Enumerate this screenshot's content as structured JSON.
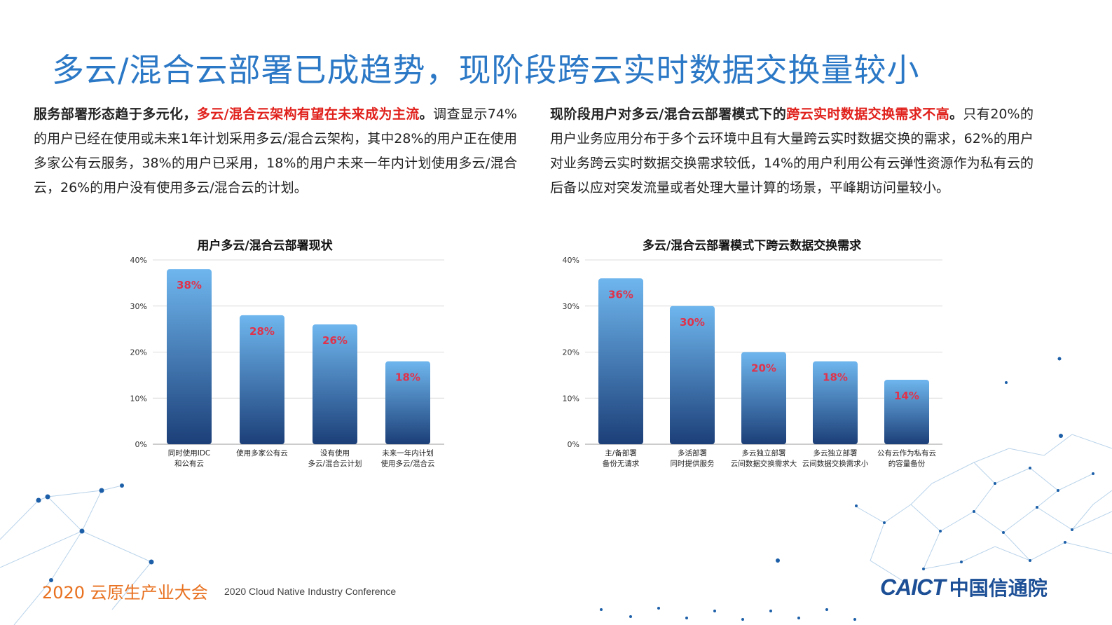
{
  "title": "多云/混合云部署已成趋势，现阶段跨云实时数据交换量较小",
  "left_text": {
    "bold": "服务部署形态趋于多元化，",
    "highlight": "多云/混合云架构有望在未来成为主流",
    "bold_end": "。",
    "body": "调查显示74%的用户已经在使用或未来1年计划采用多云/混合云架构，其中28%的用户正在使用多家公有云服务，38%的用户已采用，18%的用户未来一年内计划使用多云/混合云，26%的用户没有使用多云/混合云的计划。"
  },
  "right_text": {
    "bold": "现阶段用户对多云/混合云部署模式下的",
    "highlight": "跨云实时数据交换需求不高",
    "bold_end": "。",
    "body": "只有20%的用户业务应用分布于多个云环境中且有大量跨云实时数据交换的需求，62%的用户对业务跨云实时数据交换需求较低，14%的用户利用公有云弹性资源作为私有云的后备以应对突发流量或者处理大量计算的场景，平峰期访问量较小。"
  },
  "chart_data": [
    {
      "type": "bar",
      "title": "用户多云/混合云部署现状",
      "categories": [
        [
          "同时使用IDC",
          "和公有云"
        ],
        [
          "使用多家公有云"
        ],
        [
          "没有使用",
          "多云/混合云计划"
        ],
        [
          "未来一年内计划",
          "使用多云/混合云"
        ]
      ],
      "values": [
        38,
        28,
        26,
        18
      ],
      "value_labels": [
        "38%",
        "28%",
        "26%",
        "18%"
      ],
      "yticks": [
        "0%",
        "10%",
        "20%",
        "30%",
        "40%"
      ],
      "ylim": [
        0,
        40
      ],
      "grid": true
    },
    {
      "type": "bar",
      "title": "多云/混合云部署模式下跨云数据交换需求",
      "categories": [
        [
          "主/备部署",
          "备份无请求"
        ],
        [
          "多活部署",
          "同时提供服务"
        ],
        [
          "多云独立部署",
          "云间数据交换需求大"
        ],
        [
          "多云独立部署",
          "云间数据交换需求小"
        ],
        [
          "公有云作为私有云",
          "的容量备份"
        ]
      ],
      "values": [
        36,
        30,
        20,
        18,
        14
      ],
      "value_labels": [
        "36%",
        "30%",
        "20%",
        "18%",
        "14%"
      ],
      "yticks": [
        "0%",
        "10%",
        "20%",
        "30%",
        "40%"
      ],
      "ylim": [
        0,
        40
      ],
      "grid": true
    }
  ],
  "footer": {
    "cn": "2020 云原生产业大会",
    "en": "2020 Cloud Native Industry Conference"
  },
  "logo": {
    "caict": "CAICT",
    "cn": "中国信通院"
  },
  "colors": {
    "title": "#2b78c6",
    "highlight": "#e0201b",
    "bar_top": "#6fb6ee",
    "bar_bottom": "#1c3f78",
    "value_label": "#e0324a",
    "footer": "#e8701f",
    "logo": "#1c4f96"
  }
}
